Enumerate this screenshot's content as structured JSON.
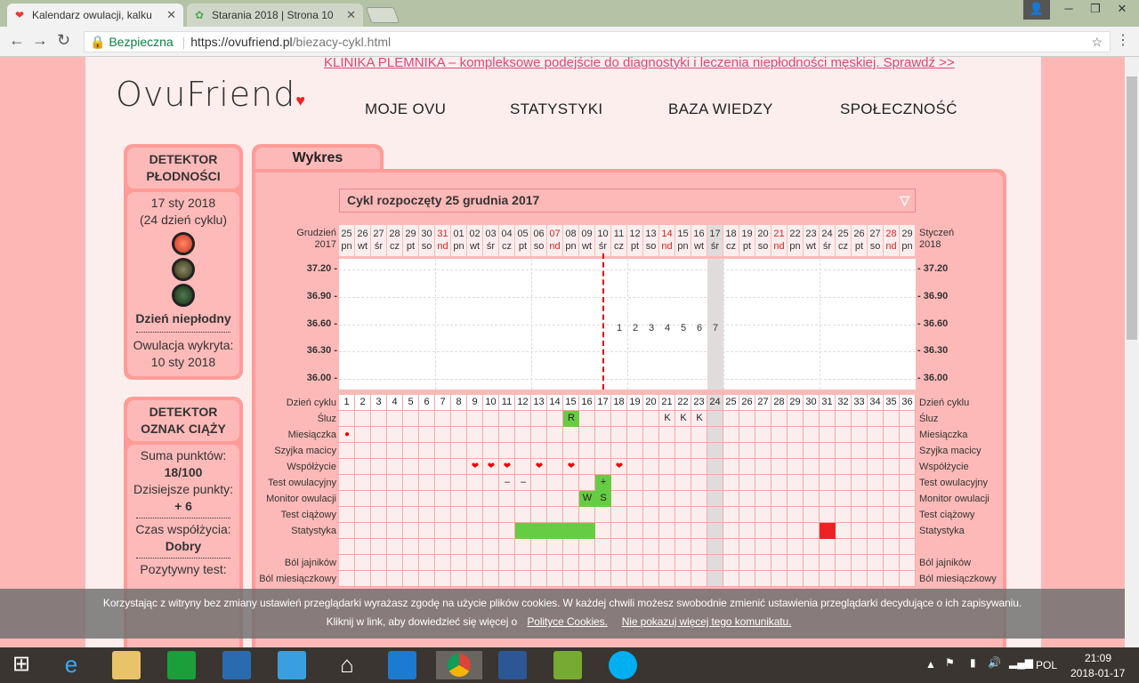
{
  "browser": {
    "tabs": [
      {
        "title": "Kalendarz owulacji, kalku",
        "active": true
      },
      {
        "title": "Starania 2018 | Strona 10",
        "active": false
      }
    ],
    "secure_label": "Bezpieczna",
    "url_host": "https://ovufriend.pl",
    "url_path": "/biezacy-cykl.html"
  },
  "site": {
    "banner": "KLINIKA PLEMNIKA – kompleksowe podejście do diagnostyki i leczenia niepłodności męskiej. Sprawdź >>",
    "logo": "OvuFriend",
    "nav": [
      "MOJE OVU",
      "STATYSTYKI",
      "BAZA WIEDZY",
      "SPOŁECZNOŚĆ"
    ]
  },
  "fertility": {
    "title": "DETEKTOR PŁODNOŚCI",
    "date": "17 sty 2018",
    "cycle_day": "(24 dzień cyklu)",
    "status": "Dzień niepłodny",
    "light_active": "red",
    "ovulation_label": "Owulacja wykryta:",
    "ovulation_date": "10 sty 2018"
  },
  "pregnancy": {
    "title": "DETEKTOR OZNAK CIĄŻY",
    "sum_label": "Suma punktów:",
    "sum_value": "18/100",
    "today_label": "Dzisiejsze punkty:",
    "today_value": "+ 6",
    "intercourse_label": "Czas współżycia:",
    "intercourse_value": "Dobry",
    "test_label": "Pozytywny test:"
  },
  "chart_panel": {
    "tab": "Wykres",
    "cycle_select": "Cykl rozpoczęty 25 grudnia 2017",
    "left_month": "Grudzień",
    "left_year": "2017",
    "right_month": "Styczeń",
    "right_year": "2018"
  },
  "chart_data": {
    "type": "table",
    "dates": [
      "25",
      "26",
      "27",
      "28",
      "29",
      "30",
      "31",
      "01",
      "02",
      "03",
      "04",
      "05",
      "06",
      "07",
      "08",
      "09",
      "10",
      "11",
      "12",
      "13",
      "14",
      "15",
      "16",
      "17",
      "18",
      "19",
      "20",
      "21",
      "22",
      "23",
      "24",
      "25",
      "26",
      "27",
      "28",
      "29"
    ],
    "weekdays": [
      "pn",
      "wt",
      "śr",
      "cz",
      "pt",
      "so",
      "nd",
      "pn",
      "wt",
      "śr",
      "cz",
      "pt",
      "so",
      "nd",
      "pn",
      "wt",
      "śr",
      "cz",
      "pt",
      "so",
      "nd",
      "pn",
      "wt",
      "śr",
      "cz",
      "pt",
      "so",
      "nd",
      "pn",
      "wt",
      "śr",
      "cz",
      "pt",
      "so",
      "nd",
      "pn"
    ],
    "y_ticks": [
      "37.20",
      "36.90",
      "36.60",
      "36.30",
      "36.00"
    ],
    "ylim": [
      35.95,
      37.25
    ],
    "ovulation_day": 17,
    "today_day": 24,
    "point_labels": [
      {
        "day": 18,
        "value": 36.55,
        "label": "1"
      },
      {
        "day": 19,
        "value": 36.55,
        "label": "2"
      },
      {
        "day": 20,
        "value": 36.55,
        "label": "3"
      },
      {
        "day": 21,
        "value": 36.55,
        "label": "4"
      },
      {
        "day": 22,
        "value": 36.55,
        "label": "5"
      },
      {
        "day": 23,
        "value": 36.55,
        "label": "6"
      },
      {
        "day": 24,
        "value": 36.55,
        "label": "7"
      }
    ],
    "rows": [
      "Dzień cyklu",
      "Śluz",
      "Miesiączka",
      "Szyjka macicy",
      "Współżycie",
      "Test owulacyjny",
      "Monitor owulacji",
      "Test ciążowy",
      "Statystyka",
      "",
      "Ból jajników",
      "Ból miesiączkowy"
    ],
    "marks": [
      {
        "row": 1,
        "day": 15,
        "text": "R",
        "color": "green"
      },
      {
        "row": 1,
        "day": 21,
        "text": "K"
      },
      {
        "row": 1,
        "day": 22,
        "text": "K"
      },
      {
        "row": 1,
        "day": 23,
        "text": "K"
      },
      {
        "row": 2,
        "day": 1,
        "text": "💧",
        "icon": "blood-drop-icon",
        "color": "red"
      },
      {
        "row": 4,
        "day": 9,
        "text": "❤",
        "icon": "heart-icon"
      },
      {
        "row": 4,
        "day": 10,
        "text": "❤",
        "icon": "heart-icon"
      },
      {
        "row": 4,
        "day": 11,
        "text": "❤",
        "icon": "heart-icon"
      },
      {
        "row": 4,
        "day": 13,
        "text": "❤",
        "icon": "heart-icon"
      },
      {
        "row": 4,
        "day": 15,
        "text": "❤",
        "icon": "heart-icon"
      },
      {
        "row": 4,
        "day": 18,
        "text": "❤",
        "icon": "heart-icon"
      },
      {
        "row": 5,
        "day": 11,
        "text": "–"
      },
      {
        "row": 5,
        "day": 12,
        "text": "–"
      },
      {
        "row": 5,
        "day": 17,
        "text": "+",
        "color": "green"
      },
      {
        "row": 6,
        "day": 16,
        "text": "W",
        "color": "green"
      },
      {
        "row": 6,
        "day": 17,
        "text": "S",
        "color": "green"
      },
      {
        "row": 8,
        "day": 12,
        "text": "",
        "color": "green"
      },
      {
        "row": 8,
        "day": 13,
        "text": "",
        "color": "green"
      },
      {
        "row": 8,
        "day": 14,
        "text": "",
        "color": "green"
      },
      {
        "row": 8,
        "day": 15,
        "text": "",
        "color": "green"
      },
      {
        "row": 8,
        "day": 16,
        "text": "",
        "color": "green"
      },
      {
        "row": 8,
        "day": 31,
        "text": "",
        "color": "red"
      }
    ]
  },
  "cookie": {
    "line1": "Korzystając z witryny bez zmiany ustawień przeglądarki wyrażasz zgodę na użycie plików cookies. W każdej chwili możesz swobodnie zmienić ustawienia przeglądarki decydujące o ich zapisywaniu.",
    "line2": "Kliknij w link, aby dowiedzieć się więcej o",
    "policy_link": "Polityce Cookies.",
    "dismiss_link": "Nie pokazuj więcej tego komunikatu."
  },
  "taskbar": {
    "lang": "POL",
    "time": "21:09",
    "date": "2018-01-17"
  },
  "colors": {
    "accent": "#ff9c98",
    "panel": "#fdb9b8",
    "ovulation_line": "#e00000",
    "positive": "#66cc44"
  }
}
